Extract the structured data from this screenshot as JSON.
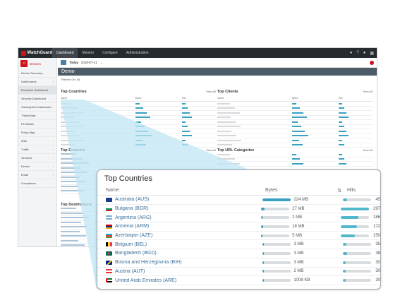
{
  "app": {
    "logo_text": "WatchGuard",
    "nav": [
      "Dashboard",
      "Monitor",
      "Configure",
      "Administration"
    ],
    "nav_active": 0,
    "top_icons": [
      "bell-icon",
      "help-icon",
      "user-icon",
      "grid-icon"
    ]
  },
  "sidebar": {
    "home_label": "Devices",
    "items": [
      {
        "label": "Device Summary",
        "chevron": false
      },
      {
        "label": "Dashboards",
        "chevron": true
      },
      {
        "label": "Executive Dashboard",
        "chevron": false,
        "selected": true
      },
      {
        "label": "Security Dashboard",
        "chevron": false
      },
      {
        "label": "Subscription Dashboard",
        "chevron": false
      },
      {
        "label": "Threat Map",
        "chevron": false
      },
      {
        "label": "FireWatch",
        "chevron": false
      },
      {
        "label": "Policy Map",
        "chevron": false
      },
      {
        "label": "Web",
        "chevron": true
      },
      {
        "label": "Traffic",
        "chevron": true
      },
      {
        "label": "Services",
        "chevron": true
      },
      {
        "label": "Device",
        "chevron": true
      },
      {
        "label": "Email",
        "chevron": true
      },
      {
        "label": "Compliance",
        "chevron": true
      }
    ]
  },
  "toolbar": {
    "date_label": "Today",
    "date_value": "2018-07-21"
  },
  "page_title": "Demo",
  "filter_text": "Filtered On: All",
  "panels": {
    "top_countries": {
      "title": "Top Countries",
      "view_all": "View All"
    },
    "top_clients": {
      "title": "Top Clients",
      "view_all": "View All"
    },
    "top_domains": {
      "title": "Top Domains",
      "view_all": "View All"
    },
    "top_url_categories": {
      "title": "Top URL Categories",
      "view_all": "View All"
    },
    "top_destinations": {
      "title": "Top Destinations"
    }
  },
  "card": {
    "title": "Top Countries",
    "columns": {
      "name": "Name",
      "bytes": "Bytes",
      "hits": "Hits"
    },
    "rows": [
      {
        "name": "Australia (AUS)",
        "bytes": "224 MB",
        "bytes_fraction": 1.0,
        "hits": "45",
        "hits_fraction": 0.15,
        "flag": "aus"
      },
      {
        "name": "Bulgaria (BGR)",
        "bytes": "27 MB",
        "bytes_fraction": 0.12,
        "hits": "297",
        "hits_fraction": 1.0,
        "flag": "bgr"
      },
      {
        "name": "Argentina (ARG)",
        "bytes": "2 MB",
        "bytes_fraction": 0.01,
        "hits": "186",
        "hits_fraction": 0.63,
        "flag": "arg"
      },
      {
        "name": "Armenia (ARM)",
        "bytes": "18 MB",
        "bytes_fraction": 0.08,
        "hits": "172",
        "hits_fraction": 0.58,
        "flag": "arm"
      },
      {
        "name": "Azerbaijan (AZE)",
        "bytes": "5 MB",
        "bytes_fraction": 0.02,
        "hits": "150",
        "hits_fraction": 0.5,
        "flag": "aze"
      },
      {
        "name": "Belgium (BEL)",
        "bytes": "3 MB",
        "bytes_fraction": 0.01,
        "hits": "35",
        "hits_fraction": 0.12,
        "flag": "bel"
      },
      {
        "name": "Bangladesh (BGD)",
        "bytes": "3 MB",
        "bytes_fraction": 0.01,
        "hits": "38",
        "hits_fraction": 0.13,
        "flag": "bgd"
      },
      {
        "name": "Bosnia and Herzegovina (BIH)",
        "bytes": "3 MB",
        "bytes_fraction": 0.01,
        "hits": "30",
        "hits_fraction": 0.1,
        "flag": "bih"
      },
      {
        "name": "Austria (AUT)",
        "bytes": "2 MB",
        "bytes_fraction": 0.01,
        "hits": "30",
        "hits_fraction": 0.1,
        "flag": "aut"
      },
      {
        "name": "United Arab Emirates (ARE)",
        "bytes": "1008 KB",
        "bytes_fraction": 0.005,
        "hits": "30",
        "hits_fraction": 0.1,
        "flag": "are"
      }
    ]
  },
  "colors": {
    "bytes_fill": "#3aa0c2",
    "hits_fill": "#53b8cc",
    "track": "#d9dcdf",
    "brand_red": "#d0121b",
    "topbar": "#262b30",
    "title_bar": "#4d5b66",
    "wedge": "#bfe6f4"
  }
}
